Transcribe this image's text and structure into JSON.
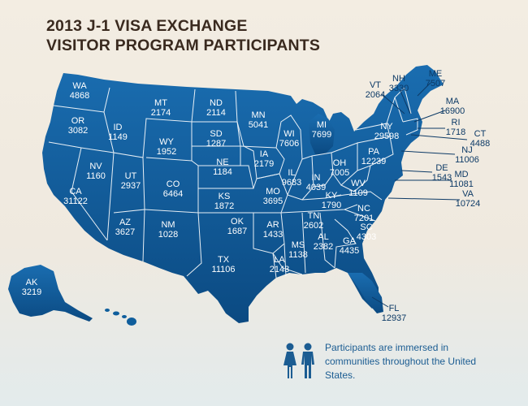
{
  "title": {
    "line1": "2013 J-1 VISA EXCHANGE",
    "line2": "VISITOR PROGRAM PARTICIPANTS"
  },
  "colors": {
    "map_fill": "#0f5e9c",
    "map_border": "#ffffff",
    "title_text": "#3a2a1f",
    "callout_text": "#0d3a66",
    "note_text": "#1b5c92"
  },
  "states": [
    {
      "abbr": "WA",
      "value": "4868"
    },
    {
      "abbr": "OR",
      "value": "3082"
    },
    {
      "abbr": "CA",
      "value": "31122"
    },
    {
      "abbr": "ID",
      "value": "1149"
    },
    {
      "abbr": "NV",
      "value": "1160"
    },
    {
      "abbr": "MT",
      "value": "2174"
    },
    {
      "abbr": "WY",
      "value": "1952"
    },
    {
      "abbr": "UT",
      "value": "2937"
    },
    {
      "abbr": "AZ",
      "value": "3627"
    },
    {
      "abbr": "CO",
      "value": "6464"
    },
    {
      "abbr": "NM",
      "value": "1028"
    },
    {
      "abbr": "ND",
      "value": "2114"
    },
    {
      "abbr": "SD",
      "value": "1287"
    },
    {
      "abbr": "NE",
      "value": "1184"
    },
    {
      "abbr": "KS",
      "value": "1872"
    },
    {
      "abbr": "OK",
      "value": "1687"
    },
    {
      "abbr": "TX",
      "value": "11106"
    },
    {
      "abbr": "MN",
      "value": "5041"
    },
    {
      "abbr": "IA",
      "value": "2179"
    },
    {
      "abbr": "MO",
      "value": "3695"
    },
    {
      "abbr": "AR",
      "value": "1433"
    },
    {
      "abbr": "LA",
      "value": "2143"
    },
    {
      "abbr": "WI",
      "value": "7606"
    },
    {
      "abbr": "IL",
      "value": "9683"
    },
    {
      "abbr": "MS",
      "value": "1138"
    },
    {
      "abbr": "MI",
      "value": "7699"
    },
    {
      "abbr": "IN",
      "value": "4039"
    },
    {
      "abbr": "KY",
      "value": "1790"
    },
    {
      "abbr": "TN",
      "value": "2602"
    },
    {
      "abbr": "AL",
      "value": "2382"
    },
    {
      "abbr": "GA",
      "value": "4435"
    },
    {
      "abbr": "OH",
      "value": "7005"
    },
    {
      "abbr": "WV",
      "value": "1109"
    },
    {
      "abbr": "VA",
      "value": "10724"
    },
    {
      "abbr": "NC",
      "value": "7201"
    },
    {
      "abbr": "SC",
      "value": "4303"
    },
    {
      "abbr": "FL",
      "value": "12937"
    },
    {
      "abbr": "PA",
      "value": "12239"
    },
    {
      "abbr": "NY",
      "value": "29598"
    },
    {
      "abbr": "VT",
      "value": "2064"
    },
    {
      "abbr": "NH",
      "value": "3330"
    },
    {
      "abbr": "ME",
      "value": "7507"
    },
    {
      "abbr": "MA",
      "value": "16900"
    },
    {
      "abbr": "RI",
      "value": "1718"
    },
    {
      "abbr": "CT",
      "value": "4488"
    },
    {
      "abbr": "NJ",
      "value": "11006"
    },
    {
      "abbr": "DE",
      "value": "1543"
    },
    {
      "abbr": "MD",
      "value": "11081"
    },
    {
      "abbr": "AK",
      "value": "3219"
    }
  ],
  "note": {
    "text": "Participants are immersed in communities throughout the United States.",
    "icon": "person-icons"
  }
}
